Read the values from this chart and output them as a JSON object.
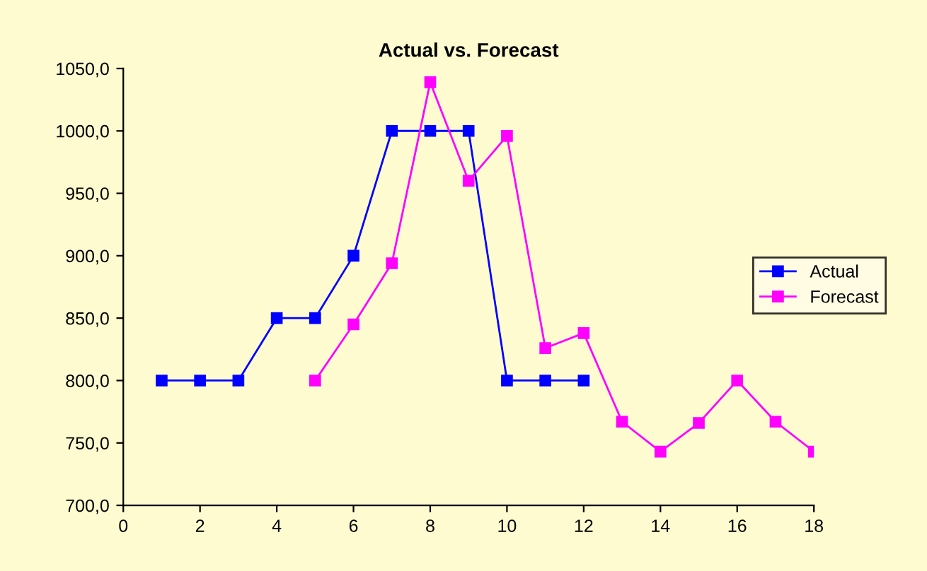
{
  "chart_data": {
    "type": "line",
    "title": "Actual vs. Forecast",
    "series": [
      {
        "name": "Actual",
        "color": "#0000ff",
        "x": [
          1,
          2,
          3,
          4,
          5,
          6,
          7,
          8,
          9,
          10,
          11,
          12
        ],
        "values": [
          800,
          800,
          800,
          850,
          850,
          900,
          1000,
          1000,
          1000,
          800,
          800,
          800
        ]
      },
      {
        "name": "Forecast",
        "color": "#ff00ff",
        "x": [
          5,
          6,
          7,
          8,
          9,
          10,
          11,
          12,
          13,
          14,
          15,
          16,
          17,
          18
        ],
        "values": [
          800,
          845,
          894,
          1039,
          960,
          996,
          826,
          838,
          767,
          743,
          766,
          800,
          767,
          743
        ]
      }
    ],
    "xlim": [
      0,
      18
    ],
    "xticks": [
      0,
      2,
      4,
      6,
      8,
      10,
      12,
      14,
      16,
      18
    ],
    "ylim": [
      700,
      1050
    ],
    "yticks": [
      {
        "value": 700,
        "label": "700,0"
      },
      {
        "value": 750,
        "label": "750,0"
      },
      {
        "value": 800,
        "label": "800,0"
      },
      {
        "value": 850,
        "label": "850,0"
      },
      {
        "value": 900,
        "label": "900,0"
      },
      {
        "value": 950,
        "label": "950,0"
      },
      {
        "value": 1000,
        "label": "1000,0"
      },
      {
        "value": 1050,
        "label": "1050,0"
      }
    ],
    "grid": false,
    "legend": "right",
    "marker": "square",
    "line_style": "solid"
  }
}
